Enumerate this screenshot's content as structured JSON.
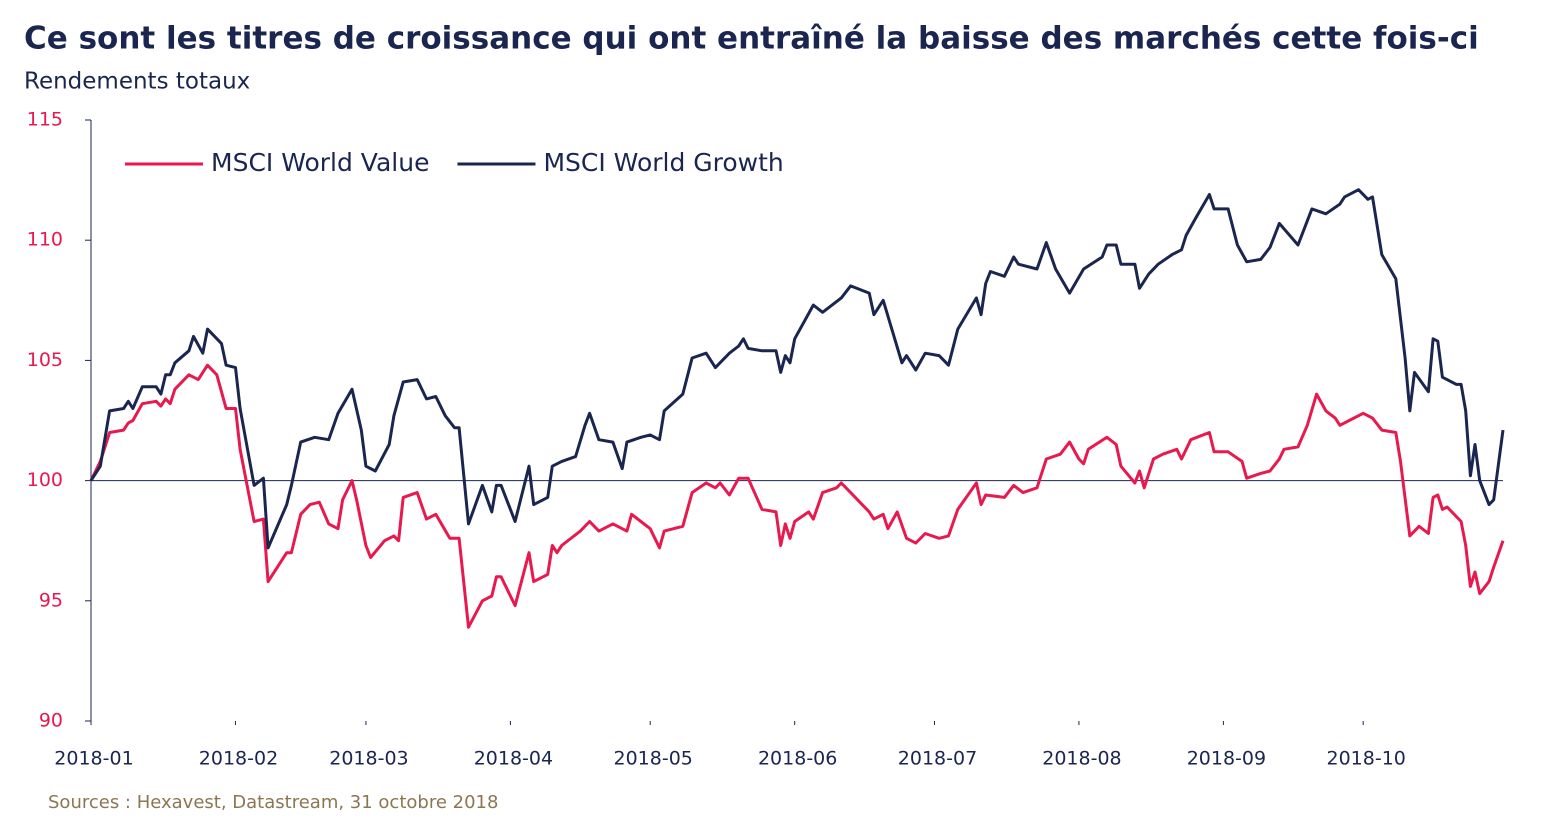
{
  "chart_data": {
    "type": "line",
    "title": "Ce sont les titres de croissance qui ont entraîné la baisse des marchés cette fois-ci",
    "subtitle": "Rendements totaux",
    "source": "Sources : Hexavest, Datastream, 31 octobre 2018",
    "xlim": [
      0,
      303
    ],
    "xticks": [
      {
        "value": 0,
        "label": "2018-01"
      },
      {
        "value": 31,
        "label": "2018-02"
      },
      {
        "value": 59,
        "label": "2018-03"
      },
      {
        "value": 90,
        "label": "2018-04"
      },
      {
        "value": 120,
        "label": "2018-05"
      },
      {
        "value": 151,
        "label": "2018-06"
      },
      {
        "value": 181,
        "label": "2018-07"
      },
      {
        "value": 212,
        "label": "2018-08"
      },
      {
        "value": 243,
        "label": "2018-09"
      },
      {
        "value": 273,
        "label": "2018-10"
      }
    ],
    "ylim": [
      90,
      115
    ],
    "yticks": [
      90,
      95,
      100,
      105,
      110,
      115
    ],
    "hline": 100,
    "legend": "top-left",
    "series": [
      {
        "name": "MSCI World Value",
        "color": "#e8194f",
        "x": [
          0,
          2,
          4,
          7,
          8,
          9,
          11,
          14,
          15,
          16,
          17,
          18,
          21,
          23,
          25,
          27,
          29,
          31,
          32,
          35,
          37,
          38,
          42,
          43,
          45,
          47,
          49,
          51,
          53,
          54,
          56,
          57,
          59,
          60,
          63,
          65,
          66,
          67,
          70,
          72,
          74,
          77,
          79,
          81,
          84,
          86,
          87,
          88,
          91,
          94,
          95,
          98,
          99,
          100,
          101,
          105,
          107,
          109,
          112,
          115,
          116,
          120,
          122,
          123,
          127,
          129,
          132,
          134,
          135,
          137,
          139,
          141,
          144,
          147,
          148,
          149,
          150,
          151,
          154,
          155,
          157,
          160,
          161,
          163,
          167,
          168,
          170,
          171,
          173,
          175,
          177,
          179,
          182,
          184,
          186,
          190,
          191,
          192,
          196,
          198,
          200,
          203,
          205,
          208,
          210,
          212,
          213,
          214,
          218,
          220,
          221,
          224,
          225,
          226,
          228,
          230,
          233,
          234,
          236,
          240,
          241,
          244,
          247,
          248,
          251,
          253,
          255,
          256,
          259,
          261,
          263,
          265,
          267,
          268,
          270,
          273,
          275,
          277,
          280,
          281,
          283,
          285,
          287,
          288,
          289,
          290,
          291,
          294,
          295,
          296,
          297,
          298,
          300,
          301,
          303
        ],
        "values": [
          100,
          100.8,
          102.0,
          102.1,
          102.4,
          102.5,
          103.2,
          103.3,
          103.1,
          103.4,
          103.2,
          103.8,
          104.4,
          104.2,
          104.8,
          104.4,
          103.0,
          103.0,
          101.3,
          98.3,
          98.4,
          95.8,
          97.0,
          97.0,
          98.6,
          99.0,
          99.1,
          98.2,
          98.0,
          99.2,
          100.0,
          99.2,
          97.3,
          96.8,
          97.5,
          97.7,
          97.5,
          99.3,
          99.5,
          98.4,
          98.6,
          97.6,
          97.6,
          93.9,
          95.0,
          95.2,
          96.0,
          96.0,
          94.8,
          97.0,
          95.8,
          96.1,
          97.3,
          97.0,
          97.3,
          97.9,
          98.3,
          97.9,
          98.2,
          97.9,
          98.6,
          98.0,
          97.2,
          97.9,
          98.1,
          99.5,
          99.9,
          99.7,
          99.9,
          99.4,
          100.1,
          100.1,
          98.8,
          98.7,
          97.3,
          98.2,
          97.6,
          98.3,
          98.7,
          98.4,
          99.5,
          99.7,
          99.9,
          99.5,
          98.7,
          98.4,
          98.6,
          98.0,
          98.7,
          97.6,
          97.4,
          97.8,
          97.6,
          97.7,
          98.8,
          99.9,
          99.0,
          99.4,
          99.3,
          99.8,
          99.5,
          99.7,
          100.9,
          101.1,
          101.6,
          100.9,
          100.7,
          101.3,
          101.8,
          101.5,
          100.6,
          99.9,
          100.4,
          99.7,
          100.9,
          101.1,
          101.3,
          100.9,
          101.7,
          102.0,
          101.2,
          101.2,
          100.8,
          100.1,
          100.3,
          100.4,
          100.9,
          101.3,
          101.4,
          102.3,
          103.6,
          102.9,
          102.6,
          102.3,
          102.5,
          102.8,
          102.6,
          102.1,
          102.0,
          100.8,
          97.7,
          98.1,
          97.8,
          99.3,
          99.4,
          98.8,
          98.9,
          98.3,
          97.3,
          95.6,
          96.2,
          95.3,
          95.8,
          96.4,
          97.5
        ]
      },
      {
        "name": "MSCI World Growth",
        "color": "#1b2650",
        "x": [
          0,
          2,
          4,
          7,
          8,
          9,
          11,
          14,
          15,
          16,
          17,
          18,
          21,
          22,
          24,
          25,
          28,
          29,
          31,
          32,
          35,
          37,
          38,
          42,
          43,
          45,
          48,
          51,
          53,
          56,
          58,
          59,
          61,
          64,
          65,
          67,
          70,
          72,
          74,
          76,
          78,
          79,
          81,
          84,
          86,
          87,
          88,
          91,
          94,
          95,
          98,
          99,
          101,
          104,
          106,
          107,
          109,
          112,
          114,
          115,
          118,
          120,
          122,
          123,
          127,
          129,
          132,
          134,
          137,
          139,
          140,
          141,
          144,
          147,
          148,
          149,
          150,
          151,
          155,
          157,
          161,
          163,
          167,
          168,
          170,
          174,
          175,
          177,
          179,
          182,
          184,
          186,
          190,
          191,
          192,
          193,
          196,
          198,
          199,
          203,
          205,
          207,
          210,
          213,
          217,
          218,
          220,
          221,
          224,
          225,
          227,
          229,
          232,
          234,
          235,
          237,
          240,
          241,
          244,
          246,
          248,
          251,
          253,
          255,
          259,
          262,
          265,
          268,
          269,
          272,
          274,
          275,
          277,
          280,
          282,
          283,
          284,
          287,
          288,
          289,
          290,
          293,
          294,
          295,
          296,
          297,
          298,
          300,
          301,
          303
        ],
        "values": [
          100,
          100.6,
          102.9,
          103.0,
          103.3,
          103.0,
          103.9,
          103.9,
          103.6,
          104.4,
          104.4,
          104.9,
          105.4,
          106.0,
          105.3,
          106.3,
          105.7,
          104.8,
          104.7,
          103.0,
          99.8,
          100.1,
          97.2,
          99.0,
          99.8,
          101.6,
          101.8,
          101.7,
          102.8,
          103.8,
          102.1,
          100.6,
          100.4,
          101.5,
          102.7,
          104.1,
          104.2,
          103.4,
          103.5,
          102.7,
          102.2,
          102.2,
          98.2,
          99.8,
          98.7,
          99.8,
          99.8,
          98.3,
          100.6,
          99.0,
          99.3,
          100.6,
          100.8,
          101.0,
          102.3,
          102.8,
          101.7,
          101.6,
          100.5,
          101.6,
          101.8,
          101.9,
          101.7,
          102.9,
          103.6,
          105.1,
          105.3,
          104.7,
          105.3,
          105.6,
          105.9,
          105.5,
          105.4,
          105.4,
          104.5,
          105.2,
          104.9,
          105.9,
          107.3,
          107.0,
          107.6,
          108.1,
          107.8,
          106.9,
          107.5,
          104.9,
          105.2,
          104.6,
          105.3,
          105.2,
          104.8,
          106.3,
          107.6,
          106.9,
          108.2,
          108.7,
          108.5,
          109.3,
          109.0,
          108.8,
          109.9,
          108.8,
          107.8,
          108.8,
          109.3,
          109.8,
          109.8,
          109.0,
          109.0,
          108.0,
          108.6,
          109.0,
          109.4,
          109.6,
          110.2,
          110.9,
          111.9,
          111.3,
          111.3,
          109.8,
          109.1,
          109.2,
          109.7,
          110.7,
          109.8,
          111.3,
          111.1,
          111.5,
          111.8,
          112.1,
          111.7,
          111.8,
          109.4,
          108.4,
          105.1,
          102.9,
          104.5,
          103.7,
          105.9,
          105.8,
          104.3,
          104.0,
          104.0,
          102.9,
          100.2,
          101.5,
          100.0,
          99.0,
          99.2,
          102.1
        ]
      }
    ]
  }
}
